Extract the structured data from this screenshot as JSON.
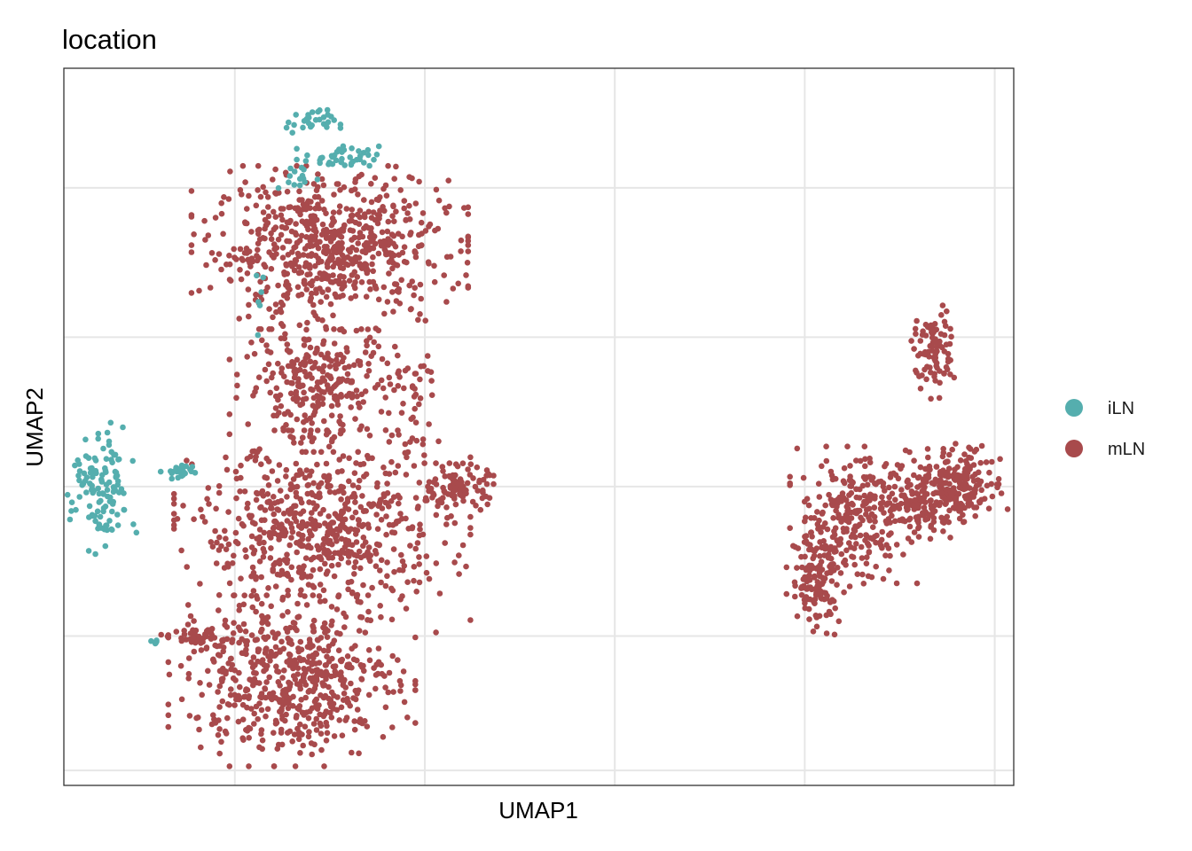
{
  "chart_data": {
    "type": "scatter",
    "title": "location",
    "xlabel": "UMAP1",
    "ylabel": "UMAP2",
    "xlim": [
      -12,
      13
    ],
    "ylim": [
      -10,
      14
    ],
    "x_gridlines": [
      -7.5,
      -2.5,
      2.5,
      7.5,
      12.5
    ],
    "y_gridlines": [
      -9.5,
      -5,
      0,
      5,
      10
    ],
    "grid": true,
    "tick_labels_shown": false,
    "legend_position": "right",
    "series": [
      {
        "name": "iLN",
        "color": "#55aeae",
        "clusters": [
          {
            "cx": -11.0,
            "cy": -0.2,
            "rx": 0.7,
            "ry": 1.8,
            "n": 120
          },
          {
            "cx": -9.0,
            "cy": 0.5,
            "rx": 0.35,
            "ry": 0.25,
            "n": 25
          },
          {
            "cx": -5.5,
            "cy": 12.2,
            "rx": 0.6,
            "ry": 0.35,
            "n": 30
          },
          {
            "cx": -4.7,
            "cy": 11.0,
            "rx": 0.9,
            "ry": 0.35,
            "n": 40
          },
          {
            "cx": -5.9,
            "cy": 10.3,
            "rx": 0.5,
            "ry": 0.4,
            "n": 14
          },
          {
            "cx": -9.6,
            "cy": -5.2,
            "rx": 0.1,
            "ry": 0.15,
            "n": 5
          },
          {
            "cx": -6.8,
            "cy": 6.5,
            "rx": 0.3,
            "ry": 1.2,
            "n": 6
          }
        ]
      },
      {
        "name": "mLN",
        "color": "#a84a4c",
        "clusters": [
          {
            "cx": -5.0,
            "cy": 8.0,
            "rx": 2.8,
            "ry": 2.1,
            "n": 650
          },
          {
            "cx": -5.3,
            "cy": 3.5,
            "rx": 1.8,
            "ry": 1.8,
            "n": 280
          },
          {
            "cx": -5.2,
            "cy": -1.5,
            "rx": 3.0,
            "ry": 2.6,
            "n": 650
          },
          {
            "cx": -6.0,
            "cy": -6.5,
            "rx": 2.5,
            "ry": 2.2,
            "n": 550
          },
          {
            "cx": -1.6,
            "cy": 0.0,
            "rx": 0.7,
            "ry": 0.6,
            "n": 100
          },
          {
            "cx": -2.8,
            "cy": 3.0,
            "rx": 0.5,
            "ry": 2.0,
            "n": 40
          },
          {
            "cx": -8.4,
            "cy": -5.0,
            "rx": 0.8,
            "ry": 0.4,
            "n": 40
          },
          {
            "cx": 7.8,
            "cy": -3.0,
            "rx": 0.6,
            "ry": 1.5,
            "n": 140
          },
          {
            "cx": 8.8,
            "cy": -1.0,
            "rx": 1.3,
            "ry": 1.8,
            "n": 250
          },
          {
            "cx": 10.8,
            "cy": -0.3,
            "rx": 1.0,
            "ry": 1.2,
            "n": 200
          },
          {
            "cx": 11.8,
            "cy": 0.2,
            "rx": 0.8,
            "ry": 1.0,
            "n": 120
          },
          {
            "cx": 10.9,
            "cy": 4.5,
            "rx": 0.5,
            "ry": 1.2,
            "n": 90
          }
        ]
      }
    ]
  }
}
